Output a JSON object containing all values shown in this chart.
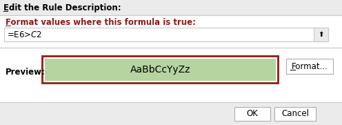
{
  "title": "Edit the Rule Description:",
  "subtitle": "Format values where this formula is true:",
  "formula": "=E6>$C$2",
  "preview_text": "AaBbCcYyZz",
  "preview_label": "Preview:",
  "format_btn": "Format...",
  "ok_btn": "OK",
  "cancel_btn": "Cancel",
  "bg_color": "#ebebeb",
  "white": "#ffffff",
  "preview_fill": "#b5d4a0",
  "dark_red": "#922b21",
  "title_color": "#000000",
  "dark_red_text": "#8b1a1a",
  "formula_text_color": "#000000",
  "separator_color": "#c8c8c8",
  "button_border": "#adadad",
  "subtitle_color": "#8b1a1a",
  "fig_width": 4.96,
  "fig_height": 1.81,
  "dpi": 100
}
